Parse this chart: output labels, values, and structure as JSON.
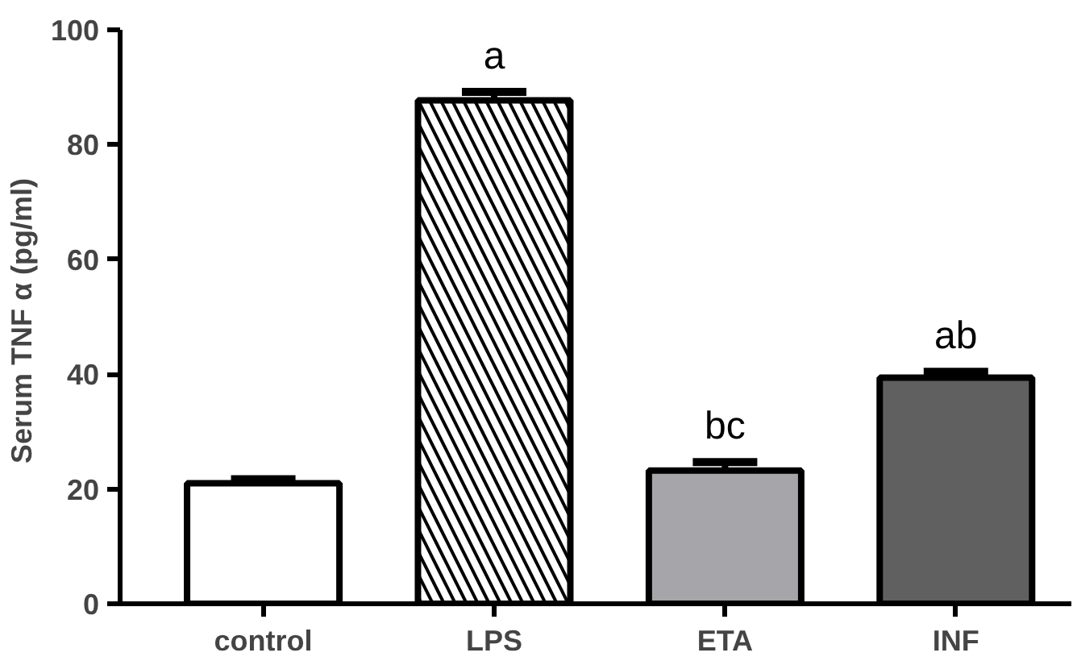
{
  "chart_data": {
    "type": "bar",
    "ylabel": "Serum TNF α  (pg/ml)",
    "categories": [
      "control",
      "LPS",
      "ETA",
      "INF"
    ],
    "values": [
      21,
      87.7,
      23.2,
      39.4
    ],
    "errors": [
      0.7,
      1.5,
      1.5,
      1
    ],
    "colors": [
      "#ffffff",
      "#ffffff",
      "#a6a6aa",
      "#606060"
    ],
    "ylim": [
      0,
      100
    ],
    "yticks": [
      0,
      20,
      40,
      60,
      80,
      100
    ],
    "annotations": [
      {
        "text": "a",
        "x": "LPS",
        "y": 87.7
      },
      {
        "text": "bc",
        "x": "ETA",
        "y": 23.2
      },
      {
        "text": "ab",
        "x": "INF",
        "y": 39.4
      }
    ],
    "grid": false
  }
}
